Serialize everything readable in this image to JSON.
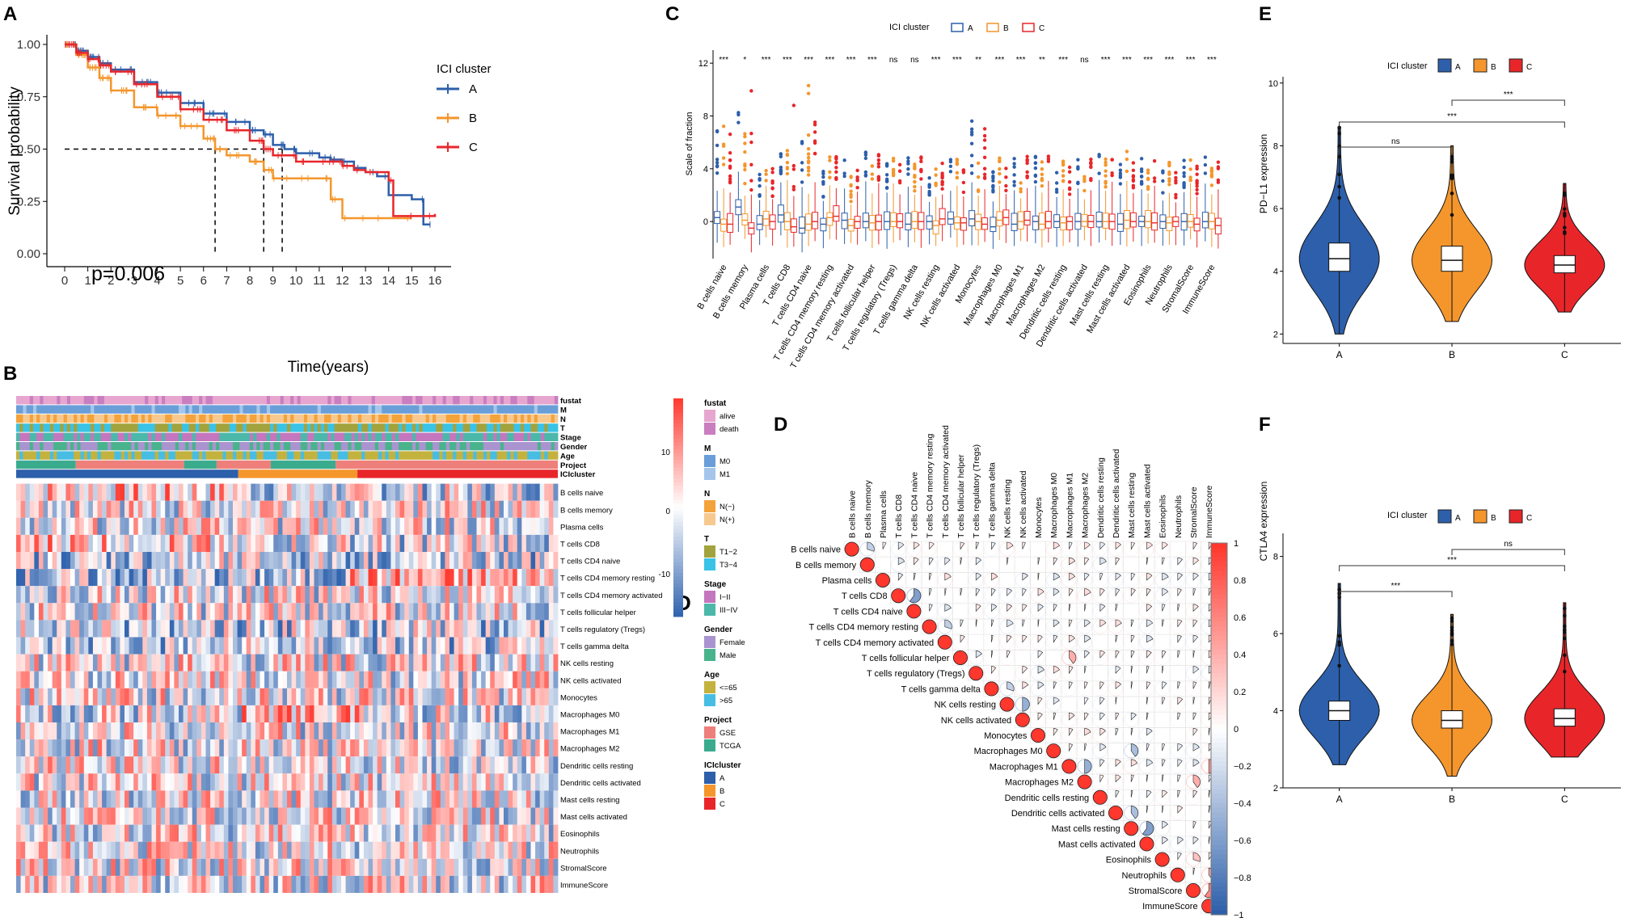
{
  "colors": {
    "A": "#2d5fab",
    "B": "#f4962c",
    "C": "#e8262a",
    "pos": "#e8262a",
    "neg": "#2d5fab",
    "mid": "#ffffff"
  },
  "panel_labels": {
    "a": "A",
    "b": "B",
    "c": "C",
    "d": "D",
    "d2": "D",
    "e": "E",
    "f": "F"
  },
  "chart_data": [
    {
      "id": "A",
      "type": "line",
      "title": "",
      "xlabel": "Time(years)",
      "ylabel": "Survival probability",
      "xlim": [
        0,
        16
      ],
      "ylim": [
        0,
        1
      ],
      "xticks": [
        "0",
        "1",
        "2",
        "3",
        "4",
        "5",
        "6",
        "7",
        "8",
        "9",
        "10",
        "11",
        "12",
        "13",
        "14",
        "15",
        "16"
      ],
      "yticks": [
        "0.00",
        "0.25",
        "0.50",
        "0.75",
        "1.00"
      ],
      "legend_title": "ICI cluster",
      "annotation": "p=0.006",
      "median_survival": {
        "A": 9.4,
        "B": 6.5,
        "C": 8.6
      },
      "series": [
        {
          "name": "A",
          "x": [
            0,
            0.5,
            1,
            1.5,
            2,
            3,
            4,
            5,
            6,
            7,
            8,
            8.6,
            9,
            9.5,
            10,
            11,
            11.5,
            12,
            12.5,
            13,
            13.5,
            14,
            15,
            15.5,
            15.8
          ],
          "y": [
            1,
            0.97,
            0.94,
            0.91,
            0.88,
            0.82,
            0.77,
            0.72,
            0.67,
            0.63,
            0.59,
            0.57,
            0.52,
            0.5,
            0.48,
            0.46,
            0.45,
            0.44,
            0.41,
            0.39,
            0.37,
            0.28,
            0.26,
            0.14,
            0.14
          ]
        },
        {
          "name": "B",
          "x": [
            0,
            0.5,
            1,
            1.5,
            2,
            3,
            4,
            5,
            6,
            6.5,
            7,
            8,
            8.6,
            9,
            10,
            11,
            11.5,
            12,
            12.5,
            13,
            14,
            15
          ],
          "y": [
            1,
            0.95,
            0.89,
            0.84,
            0.78,
            0.7,
            0.66,
            0.61,
            0.55,
            0.5,
            0.47,
            0.44,
            0.4,
            0.36,
            0.36,
            0.36,
            0.26,
            0.17,
            0.17,
            0.17,
            0.17,
            0.17
          ]
        },
        {
          "name": "C",
          "x": [
            0,
            0.5,
            1,
            1.5,
            2,
            3,
            4,
            5,
            6,
            7,
            8,
            8.6,
            9,
            10,
            11,
            11.5,
            12,
            12.5,
            13,
            14,
            14.2,
            15,
            16
          ],
          "y": [
            1,
            0.96,
            0.93,
            0.9,
            0.87,
            0.81,
            0.75,
            0.69,
            0.64,
            0.59,
            0.54,
            0.5,
            0.47,
            0.44,
            0.44,
            0.44,
            0.42,
            0.4,
            0.39,
            0.35,
            0.18,
            0.18,
            0.19
          ]
        }
      ]
    },
    {
      "id": "B",
      "type": "heatmap",
      "rows": [
        "B cells naive",
        "B cells memory",
        "Plasma cells",
        "T cells CD8",
        "T cells CD4 naive",
        "T cells CD4 memory resting",
        "T cells CD4 memory activated",
        "T cells follicular helper",
        "T cells regulatory (Tregs)",
        "T cells gamma delta",
        "NK cells resting",
        "NK cells activated",
        "Monocytes",
        "Macrophages M0",
        "Macrophages M1",
        "Macrophages M2",
        "Dendritic cells resting",
        "Dendritic cells activated",
        "Mast cells resting",
        "Mast cells activated",
        "Eosinophils",
        "Neutrophils",
        "StromalScore",
        "ImmuneScore"
      ],
      "annotation_rows": [
        "fustat",
        "M",
        "N",
        "T",
        "Stage",
        "Gender",
        "Age",
        "Project",
        "ICIcluster"
      ],
      "cluster_fractions": {
        "A": 0.41,
        "B": 0.22,
        "C": 0.37
      },
      "colorbar_ticks": [
        "10",
        "0",
        "-10"
      ],
      "legend": [
        {
          "title": "fustat",
          "items": [
            {
              "label": "alive",
              "color": "#e7a6cf"
            },
            {
              "label": "death",
              "color": "#c97ec0"
            }
          ]
        },
        {
          "title": "M",
          "items": [
            {
              "label": "M0",
              "color": "#6a9ed8"
            },
            {
              "label": "M1",
              "color": "#a5c6ea"
            }
          ]
        },
        {
          "title": "N",
          "items": [
            {
              "label": "N(−)",
              "color": "#f4a23a"
            },
            {
              "label": "N(+)",
              "color": "#f7c98e"
            }
          ]
        },
        {
          "title": "T",
          "items": [
            {
              "label": "T1−2",
              "color": "#a3a33d"
            },
            {
              "label": "T3−4",
              "color": "#39c3e6"
            }
          ]
        },
        {
          "title": "Stage",
          "items": [
            {
              "label": "I−II",
              "color": "#c476be"
            },
            {
              "label": "III−IV",
              "color": "#4bb8aa"
            }
          ]
        },
        {
          "title": "Gender",
          "items": [
            {
              "label": "Female",
              "color": "#a994d0"
            },
            {
              "label": "Male",
              "color": "#49b38c"
            }
          ]
        },
        {
          "title": "Age",
          "items": [
            {
              "label": "<=65",
              "color": "#c3b23e"
            },
            {
              "label": ">65",
              "color": "#47bde3"
            }
          ]
        },
        {
          "title": "Project",
          "items": [
            {
              "label": "GSE",
              "color": "#ee7f7a"
            },
            {
              "label": "TCGA",
              "color": "#3bab8e"
            }
          ]
        },
        {
          "title": "ICIcluster",
          "items": [
            {
              "label": "A",
              "color": "#2d5fab"
            },
            {
              "label": "B",
              "color": "#f4962c"
            },
            {
              "label": "C",
              "color": "#e8262a"
            }
          ]
        }
      ]
    },
    {
      "id": "C",
      "type": "box",
      "ylabel": "Scale of fraction",
      "legend_title": "ICI cluster",
      "yticks": [
        "0",
        "4",
        "8",
        "12"
      ],
      "ylim": [
        -2.5,
        12.5
      ],
      "categories": [
        "B cells naive",
        "B cells memory",
        "Plasma cells",
        "T cells CD8",
        "T cells CD4 naive",
        "T cells CD4 memory resting",
        "T cells CD4 memory activated",
        "T cells follicular helper",
        "T cells regulatory (Tregs)",
        "T cells gamma delta",
        "NK cells resting",
        "NK cells activated",
        "Monocytes",
        "Macrophages M0",
        "Macrophages M1",
        "Macrophages M2",
        "Dendritic cells resting",
        "Dendritic cells activated",
        "Mast cells resting",
        "Mast cells activated",
        "Eosinophils",
        "Neutrophils",
        "StromalScore",
        "ImmuneScore"
      ],
      "significance": [
        "***",
        "*",
        "***",
        "***",
        "***",
        "***",
        "***",
        "***",
        "ns",
        "ns",
        "***",
        "***",
        "**",
        "***",
        "***",
        "**",
        "***",
        "ns",
        "***",
        "***",
        "***",
        "***",
        "***",
        "***"
      ],
      "series": [
        {
          "name": "A",
          "medians": [
            0.3,
            1.1,
            -0.2,
            0.5,
            -0.5,
            -0.2,
            0.1,
            0.0,
            0.0,
            -0.2,
            0.0,
            0.2,
            0.2,
            -0.4,
            -0.2,
            0.0,
            0.0,
            0.0,
            0.0,
            -0.2,
            0.0,
            0.0,
            0.0,
            0.0
          ]
        },
        {
          "name": "B",
          "medians": [
            -0.2,
            0.1,
            0.2,
            0.0,
            -0.2,
            0.3,
            -0.3,
            -0.1,
            0.0,
            0.0,
            -0.3,
            -0.1,
            0.0,
            0.1,
            0.0,
            -0.2,
            -0.1,
            0.0,
            0.0,
            0.1,
            0.0,
            -0.1,
            0.0,
            0.0
          ]
        },
        {
          "name": "C",
          "medians": [
            -0.2,
            -0.5,
            0.0,
            -0.4,
            0.0,
            0.4,
            0.0,
            0.0,
            0.0,
            0.0,
            0.2,
            -0.1,
            -0.2,
            0.3,
            0.1,
            0.0,
            0.0,
            0.0,
            0.0,
            0.0,
            -0.1,
            0.0,
            -0.2,
            -0.3
          ]
        }
      ]
    },
    {
      "id": "D",
      "type": "heatmap",
      "labels": [
        "B cells naive",
        "B cells memory",
        "Plasma cells",
        "T cells CD8",
        "T cells CD4 naive",
        "T cells CD4 memory resting",
        "T cells CD4 memory activated",
        "T cells follicular helper",
        "T cells regulatory (Tregs)",
        "T cells gamma delta",
        "NK cells resting",
        "NK cells activated",
        "Monocytes",
        "Macrophages M0",
        "Macrophages M1",
        "Macrophages M2",
        "Dendritic cells resting",
        "Dendritic cells activated",
        "Mast cells resting",
        "Mast cells activated",
        "Eosinophils",
        "Neutrophils",
        "StromalScore",
        "ImmuneScore"
      ],
      "colorbar_ticks": [
        "1",
        "0.8",
        "0.6",
        "0.4",
        "0.2",
        "0",
        "−0.2",
        "−0.4",
        "−0.6",
        "−0.8",
        "−1"
      ],
      "strong_correlations": [
        {
          "i": 3,
          "j": 4,
          "r": -0.6
        },
        {
          "i": 0,
          "j": 1,
          "r": -0.3
        },
        {
          "i": 5,
          "j": 6,
          "r": -0.3
        },
        {
          "i": 9,
          "j": 10,
          "r": -0.3
        },
        {
          "i": 10,
          "j": 11,
          "r": -0.5
        },
        {
          "i": 14,
          "j": 15,
          "r": -0.5
        },
        {
          "i": 17,
          "j": 18,
          "r": -0.4
        },
        {
          "i": 18,
          "j": 19,
          "r": -0.6
        },
        {
          "i": 13,
          "j": 18,
          "r": -0.4
        },
        {
          "i": 22,
          "j": 23,
          "r": 0.6
        },
        {
          "i": 21,
          "j": 23,
          "r": 0.4
        },
        {
          "i": 14,
          "j": 23,
          "r": 0.5
        },
        {
          "i": 7,
          "j": 14,
          "r": 0.4
        },
        {
          "i": 15,
          "j": 22,
          "r": 0.4
        },
        {
          "i": 20,
          "j": 22,
          "r": 0.3
        }
      ]
    },
    {
      "id": "E",
      "type": "violin",
      "ylabel": "PD−L1 expression",
      "legend_title": "ICI cluster",
      "categories": [
        "A",
        "B",
        "C"
      ],
      "yticks": [
        "2",
        "4",
        "6",
        "8",
        "10"
      ],
      "ylim": [
        1.7,
        10.2
      ],
      "medians": [
        4.4,
        4.35,
        4.2
      ],
      "q1": [
        4.0,
        4.0,
        3.95
      ],
      "q3": [
        4.9,
        4.8,
        4.5
      ],
      "whisker_min": [
        2.0,
        2.4,
        2.7
      ],
      "whisker_max": [
        8.6,
        8.0,
        6.8
      ],
      "comparisons": [
        {
          "pair": [
            "A",
            "B"
          ],
          "label": "ns"
        },
        {
          "pair": [
            "A",
            "C"
          ],
          "label": "***"
        },
        {
          "pair": [
            "B",
            "C"
          ],
          "label": "***"
        }
      ]
    },
    {
      "id": "F",
      "type": "violin",
      "ylabel": "CTLA4 expression",
      "legend_title": "ICI cluster",
      "categories": [
        "A",
        "B",
        "C"
      ],
      "yticks": [
        "2",
        "4",
        "6",
        "8"
      ],
      "ylim": [
        2.0,
        8.6
      ],
      "medians": [
        4.0,
        3.75,
        3.8
      ],
      "q1": [
        3.75,
        3.55,
        3.6
      ],
      "q3": [
        4.25,
        4.0,
        4.05
      ],
      "whisker_min": [
        2.6,
        2.3,
        2.8
      ],
      "whisker_max": [
        7.3,
        6.5,
        6.8
      ],
      "comparisons": [
        {
          "pair": [
            "A",
            "B"
          ],
          "label": "***"
        },
        {
          "pair": [
            "A",
            "C"
          ],
          "label": "***"
        },
        {
          "pair": [
            "B",
            "C"
          ],
          "label": "ns"
        }
      ]
    }
  ]
}
